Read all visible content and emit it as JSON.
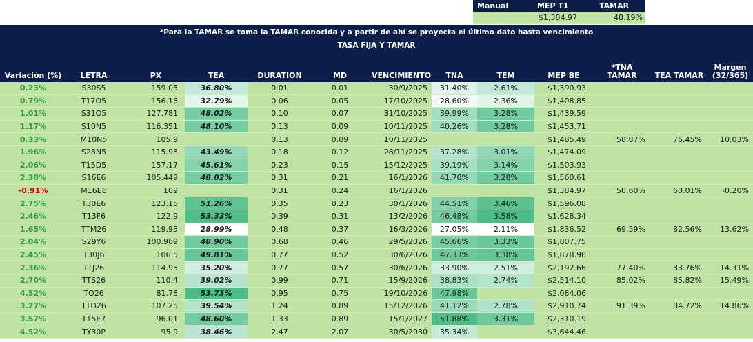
{
  "summary": {
    "headers": [
      "Manual",
      "MEP T1",
      "TAMAR"
    ],
    "mep_value": "$1,384.97",
    "tamar_value": "48.19%"
  },
  "banner": {
    "note": "*Para la TAMAR se toma la TAMAR conocida y a partir de ahí se proyecta el último dato hasta vencimiento",
    "subtitle": "TASA FIJA Y TAMAR"
  },
  "columns": {
    "variacion": "Variación (%)",
    "letra": "LETRA",
    "px": "PX",
    "tea": "TEA",
    "duration": "DURATION",
    "md": "MD",
    "vencimiento": "VENCIMIENTO",
    "tna": "TNA",
    "tem": "TEM",
    "mep_be": "MEP BE",
    "tna_tamar_1": "*TNA",
    "tna_tamar_2": "TAMAR",
    "tea_tamar": "TEA TAMAR",
    "margen_1": "Margen",
    "margen_2": "(32/365)"
  },
  "colors": {
    "navy": "#0c1f4a",
    "row_bg": "#bfe3a2",
    "positive": "#2e9a3d",
    "negative": "#e00000",
    "heat_low": "#ffffff",
    "heat_high": "#4cbd86"
  },
  "rows": [
    {
      "var": "0.23%",
      "letra": "S30S5",
      "px": "159.05",
      "tea": "36.80%",
      "dur": "0.01",
      "md": "0.01",
      "venc": "30/9/2025",
      "tna": "31.40%",
      "tem": "2.61%",
      "mep": "$1,390.93",
      "tna_tamar": "",
      "tea_tamar": "",
      "margen": ""
    },
    {
      "var": "0.79%",
      "letra": "T17O5",
      "px": "156.18",
      "tea": "32.79%",
      "dur": "0.06",
      "md": "0.05",
      "venc": "17/10/2025",
      "tna": "28.60%",
      "tem": "2.36%",
      "mep": "$1,408.85",
      "tna_tamar": "",
      "tea_tamar": "",
      "margen": ""
    },
    {
      "var": "1.01%",
      "letra": "S31O5",
      "px": "127.781",
      "tea": "48.02%",
      "dur": "0.10",
      "md": "0.07",
      "venc": "31/10/2025",
      "tna": "39.99%",
      "tem": "3.28%",
      "mep": "$1,439.59",
      "tna_tamar": "",
      "tea_tamar": "",
      "margen": ""
    },
    {
      "var": "1.17%",
      "letra": "S10N5",
      "px": "116.351",
      "tea": "48.10%",
      "dur": "0.13",
      "md": "0.09",
      "venc": "10/11/2025",
      "tna": "40.26%",
      "tem": "3.28%",
      "mep": "$1,453.71",
      "tna_tamar": "",
      "tea_tamar": "",
      "margen": ""
    },
    {
      "var": "0.33%",
      "letra": "M10N5",
      "px": "105.9",
      "tea": "",
      "dur": "0.13",
      "md": "0.09",
      "venc": "10/11/2025",
      "tna": "",
      "tem": "",
      "mep": "$1,485.49",
      "tna_tamar": "58.87%",
      "tea_tamar": "76.45%",
      "margen": "10.03%"
    },
    {
      "var": "1.96%",
      "letra": "S28N5",
      "px": "115.98",
      "tea": "43.49%",
      "dur": "0.18",
      "md": "0.12",
      "venc": "28/11/2025",
      "tna": "37.28%",
      "tem": "3.01%",
      "mep": "$1,474.09",
      "tna_tamar": "",
      "tea_tamar": "",
      "margen": ""
    },
    {
      "var": "2.06%",
      "letra": "T15D5",
      "px": "157.17",
      "tea": "45.61%",
      "dur": "0.23",
      "md": "0.15",
      "venc": "15/12/2025",
      "tna": "39.19%",
      "tem": "3.14%",
      "mep": "$1,503.93",
      "tna_tamar": "",
      "tea_tamar": "",
      "margen": ""
    },
    {
      "var": "2.38%",
      "letra": "S16E6",
      "px": "105.449",
      "tea": "48.02%",
      "dur": "0.31",
      "md": "0.21",
      "venc": "16/1/2026",
      "tna": "41.70%",
      "tem": "3.28%",
      "mep": "$1,560.61",
      "tna_tamar": "",
      "tea_tamar": "",
      "margen": ""
    },
    {
      "var": "-0.91%",
      "letra": "M16E6",
      "px": "109",
      "tea": "",
      "dur": "0.31",
      "md": "0.24",
      "venc": "16/1/2026",
      "tna": "",
      "tem": "",
      "mep": "$1,384.97",
      "tna_tamar": "50.60%",
      "tea_tamar": "60.01%",
      "margen": "-0.20%"
    },
    {
      "var": "2.75%",
      "letra": "T30E6",
      "px": "123.15",
      "tea": "51.26%",
      "dur": "0.35",
      "md": "0.23",
      "venc": "30/1/2026",
      "tna": "44.51%",
      "tem": "3.46%",
      "mep": "$1,596.08",
      "tna_tamar": "",
      "tea_tamar": "",
      "margen": ""
    },
    {
      "var": "2.46%",
      "letra": "T13F6",
      "px": "122.9",
      "tea": "53.33%",
      "dur": "0.39",
      "md": "0.31",
      "venc": "13/2/2026",
      "tna": "46.48%",
      "tem": "3.58%",
      "mep": "$1,628.34",
      "tna_tamar": "",
      "tea_tamar": "",
      "margen": ""
    },
    {
      "var": "1.65%",
      "letra": "TTM26",
      "px": "119.95",
      "tea": "28.99%",
      "dur": "0.48",
      "md": "0.37",
      "venc": "16/3/2026",
      "tna": "27.05%",
      "tem": "2.11%",
      "mep": "$1,836.52",
      "tna_tamar": "69.59%",
      "tea_tamar": "82.56%",
      "margen": "13.62%"
    },
    {
      "var": "2.04%",
      "letra": "S29Y6",
      "px": "100.969",
      "tea": "48.90%",
      "dur": "0.68",
      "md": "0.46",
      "venc": "29/5/2026",
      "tna": "45.66%",
      "tem": "3.33%",
      "mep": "$1,807.75",
      "tna_tamar": "",
      "tea_tamar": "",
      "margen": ""
    },
    {
      "var": "2.45%",
      "letra": "T30J6",
      "px": "106.5",
      "tea": "49.81%",
      "dur": "0.77",
      "md": "0.52",
      "venc": "30/6/2026",
      "tna": "47.33%",
      "tem": "3.38%",
      "mep": "$1,878.90",
      "tna_tamar": "",
      "tea_tamar": "",
      "margen": ""
    },
    {
      "var": "2.36%",
      "letra": "TTJ26",
      "px": "114.95",
      "tea": "35.20%",
      "dur": "0.77",
      "md": "0.57",
      "venc": "30/6/2026",
      "tna": "33.90%",
      "tem": "2.51%",
      "mep": "$2,192.66",
      "tna_tamar": "77.40%",
      "tea_tamar": "83.76%",
      "margen": "14.31%"
    },
    {
      "var": "2.70%",
      "letra": "TTS26",
      "px": "110.4",
      "tea": "39.02%",
      "dur": "0.99",
      "md": "0.71",
      "venc": "15/9/2026",
      "tna": "38.83%",
      "tem": "2.74%",
      "mep": "$2,514.10",
      "tna_tamar": "85.02%",
      "tea_tamar": "85.82%",
      "margen": "15.49%"
    },
    {
      "var": "4.52%",
      "letra": "TO26",
      "px": "81.78",
      "tea": "53.73%",
      "dur": "0.95",
      "md": "0.75",
      "venc": "19/10/2026",
      "tna": "47.98%",
      "tem": "",
      "mep": "$2,084.06",
      "tna_tamar": "",
      "tea_tamar": "",
      "margen": ""
    },
    {
      "var": "3.27%",
      "letra": "TTD26",
      "px": "107.25",
      "tea": "39.54%",
      "dur": "1.24",
      "md": "0.89",
      "venc": "15/12/2026",
      "tna": "41.12%",
      "tem": "2.78%",
      "mep": "$2,910.74",
      "tna_tamar": "91.39%",
      "tea_tamar": "84.72%",
      "margen": "14.86%"
    },
    {
      "var": "3.57%",
      "letra": "T15E7",
      "px": "96.01",
      "tea": "48.60%",
      "dur": "1.33",
      "md": "0.89",
      "venc": "15/1/2027",
      "tna": "51.88%",
      "tem": "3.31%",
      "mep": "$2,310.19",
      "tna_tamar": "",
      "tea_tamar": "",
      "margen": ""
    },
    {
      "var": "4.52%",
      "letra": "TY30P",
      "px": "95.9",
      "tea": "38.46%",
      "dur": "2.47",
      "md": "2.07",
      "venc": "30/5/2030",
      "tna": "35.34%",
      "tem": "",
      "mep": "$3,644.46",
      "tna_tamar": "",
      "tea_tamar": "",
      "margen": ""
    }
  ]
}
